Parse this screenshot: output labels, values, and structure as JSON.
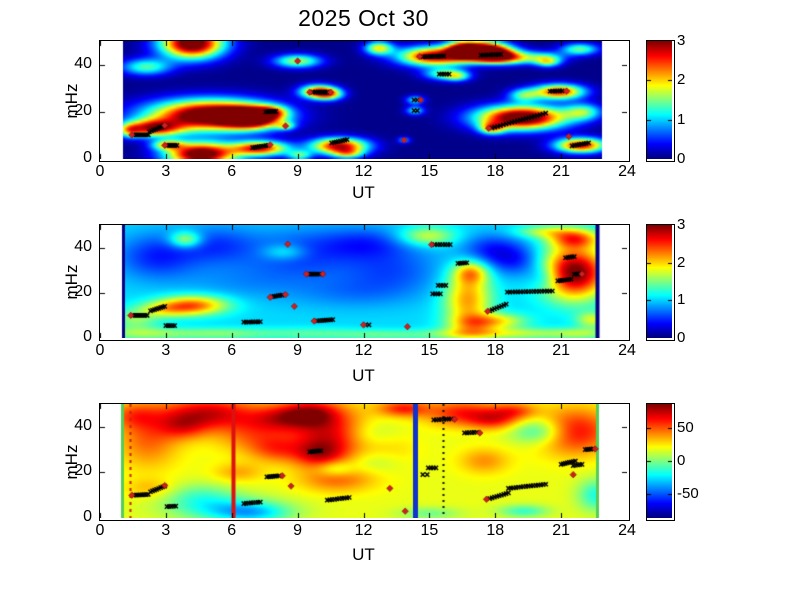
{
  "title": "2025 Oct 30",
  "style_data": {
    "background": "#ffffff",
    "marker_color": "#000000",
    "diamond_color": "#cf2020",
    "colormap": "jet"
  },
  "chart_data": [
    {
      "name": "spectrogram-panel-1",
      "type": "heatmap",
      "xlabel": "UT",
      "ylabel": "mHz",
      "xlim": [
        0,
        24
      ],
      "ylim": [
        0,
        50
      ],
      "xticks": [
        0,
        3,
        6,
        9,
        12,
        15,
        18,
        21,
        24
      ],
      "yticks": [
        0,
        20,
        40
      ],
      "clim": [
        0,
        3
      ],
      "colorbar_ticks": [
        0,
        1,
        2,
        3
      ],
      "base": 0.03,
      "data_extent": [
        1.05,
        22.85
      ],
      "blobs": [
        [
          4.2,
          49,
          1.0,
          4.5,
          3.4
        ],
        [
          2.1,
          39,
          0.8,
          2.5,
          1.3
        ],
        [
          1.35,
          12,
          0.35,
          2,
          1.2
        ],
        [
          2.4,
          13,
          0.9,
          2.5,
          2.4
        ],
        [
          5.0,
          18.5,
          1.9,
          4.5,
          3.6
        ],
        [
          6.9,
          17.5,
          0.9,
          3,
          3.0
        ],
        [
          4.6,
          2,
          1.1,
          3.5,
          3.4
        ],
        [
          3.1,
          6,
          0.5,
          1.5,
          1.6
        ],
        [
          7.3,
          4.5,
          0.9,
          2.2,
          2.6
        ],
        [
          7.8,
          20,
          0.5,
          1.8,
          1.2
        ],
        [
          8.45,
          14,
          0.3,
          1.2,
          1.1
        ],
        [
          9.0,
          41.5,
          0.75,
          2,
          1.6
        ],
        [
          9.9,
          28.5,
          0.55,
          2,
          2.4
        ],
        [
          10.45,
          27.5,
          0.45,
          1.8,
          1.6
        ],
        [
          10.9,
          5.5,
          0.9,
          2.4,
          2.8
        ],
        [
          9.1,
          1.5,
          0.4,
          1.5,
          1.2
        ],
        [
          11.3,
          2.2,
          0.5,
          1.5,
          1.2
        ],
        [
          12.7,
          47,
          0.45,
          2,
          1.8
        ],
        [
          15.2,
          43.5,
          1.1,
          2.8,
          2.9
        ],
        [
          16.55,
          46.5,
          0.55,
          2.5,
          2.7
        ],
        [
          17.6,
          46.5,
          0.7,
          2.5,
          2.6
        ],
        [
          15.7,
          36,
          0.65,
          1.8,
          1.4
        ],
        [
          16.3,
          35,
          0.4,
          1.5,
          1.0
        ],
        [
          14.35,
          25,
          0.3,
          1.3,
          1.1
        ],
        [
          14.35,
          20.5,
          0.3,
          1.3,
          1.1
        ],
        [
          13.85,
          8,
          0.2,
          1,
          0.9
        ],
        [
          19.2,
          17.5,
          1.4,
          3.5,
          3.5
        ],
        [
          17.85,
          13,
          0.4,
          1.8,
          1.6
        ],
        [
          20.9,
          28.5,
          0.8,
          2.2,
          2.6
        ],
        [
          17.8,
          44,
          0.9,
          2.2,
          2.9
        ],
        [
          18.6,
          42.5,
          0.8,
          1.8,
          1.1
        ],
        [
          20.2,
          43,
          0.7,
          1.8,
          1.1
        ],
        [
          19.3,
          27,
          0.5,
          2,
          1.2
        ],
        [
          21.85,
          46.5,
          0.6,
          1.8,
          1.4
        ],
        [
          20.4,
          41,
          0.4,
          1.5,
          1.2
        ],
        [
          22.0,
          20,
          0.6,
          2.5,
          1.3
        ],
        [
          21.9,
          5.8,
          0.8,
          2.2,
          2.7
        ]
      ],
      "vlines": [],
      "trails": [
        [
          1.55,
          10.2,
          2.2,
          10.2,
          8
        ],
        [
          2.25,
          11.5,
          2.9,
          14,
          8
        ],
        [
          3.05,
          5.8,
          3.5,
          5.8,
          6
        ],
        [
          6.95,
          4.8,
          7.65,
          5.8,
          8
        ],
        [
          7.55,
          20,
          8.0,
          20.2,
          6
        ],
        [
          9.7,
          28.3,
          10.35,
          28.3,
          7
        ],
        [
          10.55,
          6.8,
          11.25,
          8.2,
          8
        ],
        [
          14.7,
          43.3,
          15.65,
          43.6,
          10
        ],
        [
          15.45,
          36,
          15.9,
          36,
          5
        ],
        [
          14.3,
          25,
          14.45,
          25,
          2
        ],
        [
          14.3,
          20.5,
          14.45,
          20.5,
          2
        ],
        [
          17.35,
          44,
          18.25,
          44.3,
          9
        ],
        [
          17.85,
          13.2,
          20.3,
          19.4,
          20
        ],
        [
          20.5,
          28.7,
          21.05,
          28.9,
          6
        ],
        [
          21.5,
          5.6,
          22.25,
          6.8,
          8
        ]
      ],
      "diamonds": [
        [
          1.45,
          10.2
        ],
        [
          2.95,
          14.2
        ],
        [
          2.95,
          5.8
        ],
        [
          7.75,
          6.0
        ],
        [
          8.45,
          14
        ],
        [
          9.0,
          41.5
        ],
        [
          9.55,
          28.3
        ],
        [
          10.5,
          28.3
        ],
        [
          13.85,
          8
        ],
        [
          14.6,
          25
        ],
        [
          14.55,
          43.4
        ],
        [
          17.7,
          13
        ],
        [
          21.25,
          28.8
        ],
        [
          21.35,
          9.5
        ]
      ]
    },
    {
      "name": "spectrogram-panel-2",
      "type": "heatmap",
      "xlabel": "UT",
      "ylabel": "mHz",
      "xlim": [
        0,
        24
      ],
      "ylim": [
        0,
        50
      ],
      "xticks": [
        0,
        3,
        6,
        9,
        12,
        15,
        18,
        21,
        24
      ],
      "yticks": [
        0,
        20,
        40
      ],
      "clim": [
        0,
        3
      ],
      "colorbar_ticks": [
        0,
        1,
        2,
        3
      ],
      "base": 1.02,
      "data_extent": [
        1.0,
        22.7
      ],
      "blobs": [
        [
          3.9,
          43.5,
          0.5,
          2.5,
          0.9
        ],
        [
          4.25,
          14.5,
          1.1,
          3,
          1.3
        ],
        [
          2.9,
          12.5,
          0.9,
          2.5,
          0.6
        ],
        [
          1.6,
          8,
          0.7,
          3,
          0.5
        ],
        [
          2.0,
          2,
          1.5,
          2,
          0.55
        ],
        [
          5.5,
          2,
          1.5,
          1.8,
          0.45
        ],
        [
          9.5,
          2,
          1.8,
          1.8,
          0.35
        ],
        [
          13,
          1.5,
          1.5,
          1.5,
          0.35
        ],
        [
          16.8,
          1.8,
          1.5,
          1.8,
          0.55
        ],
        [
          19.5,
          2,
          1.5,
          1.8,
          0.5
        ],
        [
          22,
          2,
          1,
          1.8,
          0.5
        ],
        [
          8.4,
          38,
          0.7,
          2.5,
          0.45
        ],
        [
          14.9,
          45,
          0.9,
          3,
          0.75
        ],
        [
          16.75,
          17,
          0.75,
          9,
          1.15
        ],
        [
          16.9,
          29,
          0.55,
          3.5,
          0.9
        ],
        [
          17.0,
          6,
          0.8,
          3,
          0.6
        ],
        [
          21.6,
          29,
          1.05,
          8,
          2.1
        ],
        [
          21.6,
          44,
          0.8,
          3,
          1.2
        ],
        [
          18.2,
          7.5,
          0.9,
          2.5,
          0.75
        ],
        [
          22.4,
          8,
          0.5,
          2.5,
          0.7
        ],
        [
          20.2,
          47,
          0.9,
          2,
          0.6
        ],
        [
          2.6,
          36,
          1.3,
          7,
          -0.55
        ],
        [
          5.3,
          41,
          1.3,
          6,
          -0.45
        ],
        [
          9.2,
          37,
          1.8,
          8,
          -0.45
        ],
        [
          12.2,
          42,
          1.5,
          5,
          -0.45
        ],
        [
          13.3,
          30,
          1.6,
          7,
          -0.4
        ],
        [
          11.5,
          20,
          2,
          5,
          -0.25
        ],
        [
          17.8,
          39,
          1.0,
          5,
          -0.55
        ],
        [
          19.0,
          34,
          0.9,
          5,
          -0.5
        ],
        [
          20.3,
          27,
          0.6,
          4,
          -0.45
        ],
        [
          6.5,
          25,
          2,
          6,
          -0.2
        ]
      ],
      "vlines": [
        {
          "x": 1.05,
          "color": "#000080",
          "width": 3,
          "dash": null
        },
        {
          "x": 22.62,
          "color": "#000080",
          "width": 4,
          "dash": null
        }
      ],
      "trails": [
        [
          1.5,
          10,
          2.15,
          10,
          8
        ],
        [
          2.3,
          12,
          2.95,
          14,
          8
        ],
        [
          3.0,
          5.5,
          3.4,
          5.5,
          5
        ],
        [
          6.55,
          7,
          7.3,
          7.2,
          8
        ],
        [
          7.85,
          18.3,
          8.3,
          19,
          6
        ],
        [
          9.5,
          28.3,
          10.0,
          28.3,
          6
        ],
        [
          9.9,
          7.6,
          10.6,
          8.1,
          8
        ],
        [
          12.1,
          5.8,
          12.25,
          5.8,
          2
        ],
        [
          15.25,
          41.3,
          15.95,
          41.3,
          7
        ],
        [
          16.3,
          33,
          16.7,
          33.3,
          5
        ],
        [
          15.4,
          23.3,
          15.75,
          23.3,
          4
        ],
        [
          15.15,
          19.5,
          15.5,
          19.5,
          4
        ],
        [
          17.75,
          12,
          18.5,
          15,
          8
        ],
        [
          18.55,
          20.3,
          20.6,
          20.8,
          18
        ],
        [
          20.85,
          25.3,
          21.45,
          26,
          7
        ],
        [
          21.2,
          35.5,
          21.6,
          36,
          5
        ],
        [
          21.6,
          28.2,
          21.9,
          28.4,
          4
        ]
      ],
      "diamonds": [
        [
          1.4,
          10
        ],
        [
          7.75,
          18
        ],
        [
          8.45,
          19.2
        ],
        [
          8.55,
          41.5
        ],
        [
          9.4,
          28.3
        ],
        [
          10.15,
          28.3
        ],
        [
          8.85,
          14
        ],
        [
          9.75,
          7.5
        ],
        [
          12.0,
          5.8
        ],
        [
          15.1,
          41.3
        ],
        [
          14.0,
          5
        ],
        [
          17.65,
          11.8
        ],
        [
          21.95,
          28.3
        ]
      ]
    },
    {
      "name": "spectrogram-panel-3",
      "type": "heatmap",
      "xlabel": "UT",
      "ylabel": "mHz",
      "xlim": [
        0,
        24
      ],
      "ylim": [
        0,
        50
      ],
      "xticks": [
        0,
        3,
        6,
        9,
        12,
        15,
        18,
        21,
        24
      ],
      "yticks": [
        0,
        20,
        40
      ],
      "clim": [
        -86,
        86
      ],
      "colorbar_ticks": [
        -50,
        0,
        50
      ],
      "base": 18,
      "data_extent": [
        0.95,
        22.72
      ],
      "blobs": [
        [
          2.2,
          35,
          1.0,
          9,
          30
        ],
        [
          1.5,
          45,
          0.8,
          4,
          25
        ],
        [
          4.9,
          46,
          1.5,
          5,
          52
        ],
        [
          3.8,
          40,
          0.8,
          4,
          30
        ],
        [
          7.0,
          37,
          1.2,
          6,
          28
        ],
        [
          8.3,
          44,
          1.0,
          4,
          35
        ],
        [
          9.6,
          46,
          0.9,
          4,
          45
        ],
        [
          10.6,
          36,
          1.3,
          8,
          55
        ],
        [
          9.9,
          28,
          0.8,
          4,
          35
        ],
        [
          13.8,
          48,
          0.8,
          2.5,
          40
        ],
        [
          12.9,
          30,
          1.0,
          6,
          18
        ],
        [
          16.5,
          46,
          1.2,
          4,
          42
        ],
        [
          18.0,
          43,
          0.8,
          3,
          35
        ],
        [
          18.9,
          47,
          0.7,
          2.5,
          30
        ],
        [
          21.6,
          38,
          1.2,
          7,
          48
        ],
        [
          17.5,
          25,
          0.8,
          4,
          22
        ],
        [
          10.8,
          17,
          1.2,
          4,
          28
        ],
        [
          2.3,
          13,
          0.8,
          3,
          15
        ],
        [
          6.3,
          20,
          0.8,
          3,
          18
        ],
        [
          8.0,
          30,
          0.8,
          4,
          25
        ],
        [
          5.8,
          4,
          1.8,
          4,
          -35
        ],
        [
          7.0,
          2,
          1.2,
          3,
          -30
        ],
        [
          4.5,
          10,
          1.2,
          4,
          -22
        ],
        [
          10.7,
          21.5,
          0.6,
          2.5,
          -25
        ],
        [
          12.2,
          36,
          1.0,
          5,
          -28
        ],
        [
          12.5,
          25,
          0.9,
          4,
          -20
        ],
        [
          20.0,
          38,
          0.9,
          4,
          -38
        ],
        [
          19.3,
          3,
          0.8,
          2,
          -30
        ],
        [
          22.6,
          10,
          0.6,
          5,
          -35
        ],
        [
          15.0,
          2,
          1.0,
          2,
          -20
        ]
      ],
      "vlines": [
        {
          "x": 1.0,
          "color": "#55cc55",
          "width": 3,
          "dash": null
        },
        {
          "x": 1.35,
          "color": "#cc2200",
          "width": 2,
          "dash": [
            3,
            4
          ]
        },
        {
          "x": 6.05,
          "color": "#dd1111",
          "width": 4,
          "dash": null
        },
        {
          "x": 14.35,
          "color": "#1133cc",
          "width": 5,
          "dash": null
        },
        {
          "x": 15.6,
          "color": "#111111",
          "width": 2,
          "dash": [
            2,
            4
          ]
        },
        {
          "x": 22.65,
          "color": "#55cc55",
          "width": 3,
          "dash": null
        }
      ],
      "trails": [
        [
          1.55,
          10,
          2.2,
          10.3,
          8
        ],
        [
          2.3,
          11.5,
          2.95,
          14,
          8
        ],
        [
          3.05,
          5,
          3.45,
          5.2,
          5
        ],
        [
          6.55,
          6.3,
          7.3,
          7,
          8
        ],
        [
          7.6,
          18,
          8.15,
          18.5,
          7
        ],
        [
          9.55,
          29,
          10.05,
          29.5,
          6
        ],
        [
          10.35,
          7.8,
          11.35,
          9,
          10
        ],
        [
          15.2,
          43,
          16.0,
          43.5,
          8
        ],
        [
          16.6,
          37.3,
          17.15,
          37.6,
          6
        ],
        [
          14.95,
          22,
          15.3,
          22,
          4
        ],
        [
          14.7,
          19,
          14.9,
          19,
          2
        ],
        [
          17.75,
          8.5,
          18.6,
          11,
          9
        ],
        [
          18.6,
          13,
          20.3,
          14.8,
          16
        ],
        [
          21.0,
          23.5,
          21.65,
          25,
          8
        ],
        [
          21.55,
          23,
          21.95,
          23.5,
          5
        ],
        [
          22.1,
          30,
          22.45,
          30.3,
          5
        ]
      ],
      "diamonds": [
        [
          1.45,
          10
        ],
        [
          2.95,
          14.2
        ],
        [
          8.3,
          18.5
        ],
        [
          8.7,
          14
        ],
        [
          13.9,
          3
        ],
        [
          13.2,
          13
        ],
        [
          16.15,
          43.3
        ],
        [
          17.3,
          37.3
        ],
        [
          17.6,
          8.2
        ],
        [
          21.55,
          19
        ],
        [
          22.55,
          30.3
        ]
      ]
    }
  ]
}
